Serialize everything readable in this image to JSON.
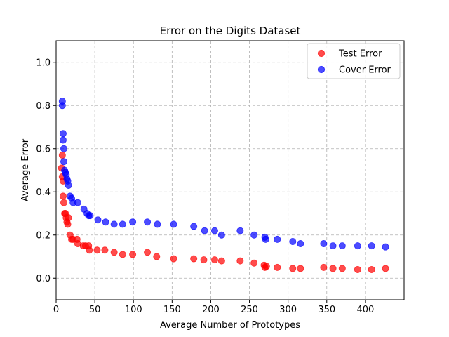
{
  "chart_data": {
    "type": "scatter",
    "title": "Error on the Digits Dataset",
    "xlabel": "Average Number of Prototypes",
    "ylabel": "Average Error",
    "xlim": [
      0,
      450
    ],
    "ylim": [
      -0.1,
      1.1
    ],
    "xticks": [
      0,
      50,
      100,
      150,
      200,
      250,
      300,
      350,
      400
    ],
    "yticks": [
      0.0,
      0.2,
      0.4,
      0.6,
      0.8,
      1.0
    ],
    "xtick_labels": [
      "0",
      "50",
      "100",
      "150",
      "200",
      "250",
      "300",
      "350",
      "400"
    ],
    "ytick_labels": [
      "0.0",
      "0.2",
      "0.4",
      "0.6",
      "0.8",
      "1.0"
    ],
    "grid": true,
    "legend_position": "top-right",
    "series": [
      {
        "name": "Test Error",
        "color": "#ff0000",
        "x": [
          7,
          8,
          8,
          9,
          9,
          10,
          11,
          12,
          13,
          14,
          15,
          16,
          18,
          20,
          22,
          27,
          28,
          35,
          38,
          42,
          43,
          53,
          63,
          75,
          86,
          99,
          118,
          130,
          152,
          178,
          191,
          205,
          214,
          238,
          256,
          269,
          270,
          272,
          286,
          306,
          316,
          346,
          358,
          370,
          390,
          408,
          426
        ],
        "y": [
          0.51,
          0.57,
          0.47,
          0.45,
          0.38,
          0.35,
          0.3,
          0.3,
          0.28,
          0.26,
          0.25,
          0.28,
          0.2,
          0.18,
          0.18,
          0.18,
          0.16,
          0.15,
          0.15,
          0.15,
          0.13,
          0.13,
          0.13,
          0.12,
          0.11,
          0.11,
          0.12,
          0.1,
          0.09,
          0.09,
          0.085,
          0.085,
          0.08,
          0.08,
          0.07,
          0.06,
          0.05,
          0.055,
          0.05,
          0.045,
          0.045,
          0.05,
          0.045,
          0.045,
          0.04,
          0.04,
          0.045
        ]
      },
      {
        "name": "Cover Error",
        "color": "#0000ff",
        "x": [
          8,
          8,
          9,
          9,
          10,
          10,
          11,
          12,
          13,
          14,
          15,
          16,
          18,
          20,
          22,
          28,
          36,
          40,
          42,
          44,
          54,
          64,
          75,
          86,
          99,
          118,
          131,
          152,
          178,
          192,
          205,
          214,
          238,
          256,
          270,
          271,
          286,
          306,
          316,
          346,
          358,
          370,
          390,
          408,
          426
        ],
        "y": [
          0.8,
          0.82,
          0.67,
          0.64,
          0.6,
          0.54,
          0.5,
          0.49,
          0.48,
          0.46,
          0.45,
          0.43,
          0.38,
          0.37,
          0.35,
          0.35,
          0.32,
          0.3,
          0.29,
          0.29,
          0.27,
          0.26,
          0.25,
          0.25,
          0.26,
          0.26,
          0.25,
          0.25,
          0.24,
          0.22,
          0.22,
          0.2,
          0.22,
          0.2,
          0.19,
          0.18,
          0.18,
          0.17,
          0.16,
          0.16,
          0.15,
          0.15,
          0.15,
          0.15,
          0.145
        ]
      }
    ]
  }
}
